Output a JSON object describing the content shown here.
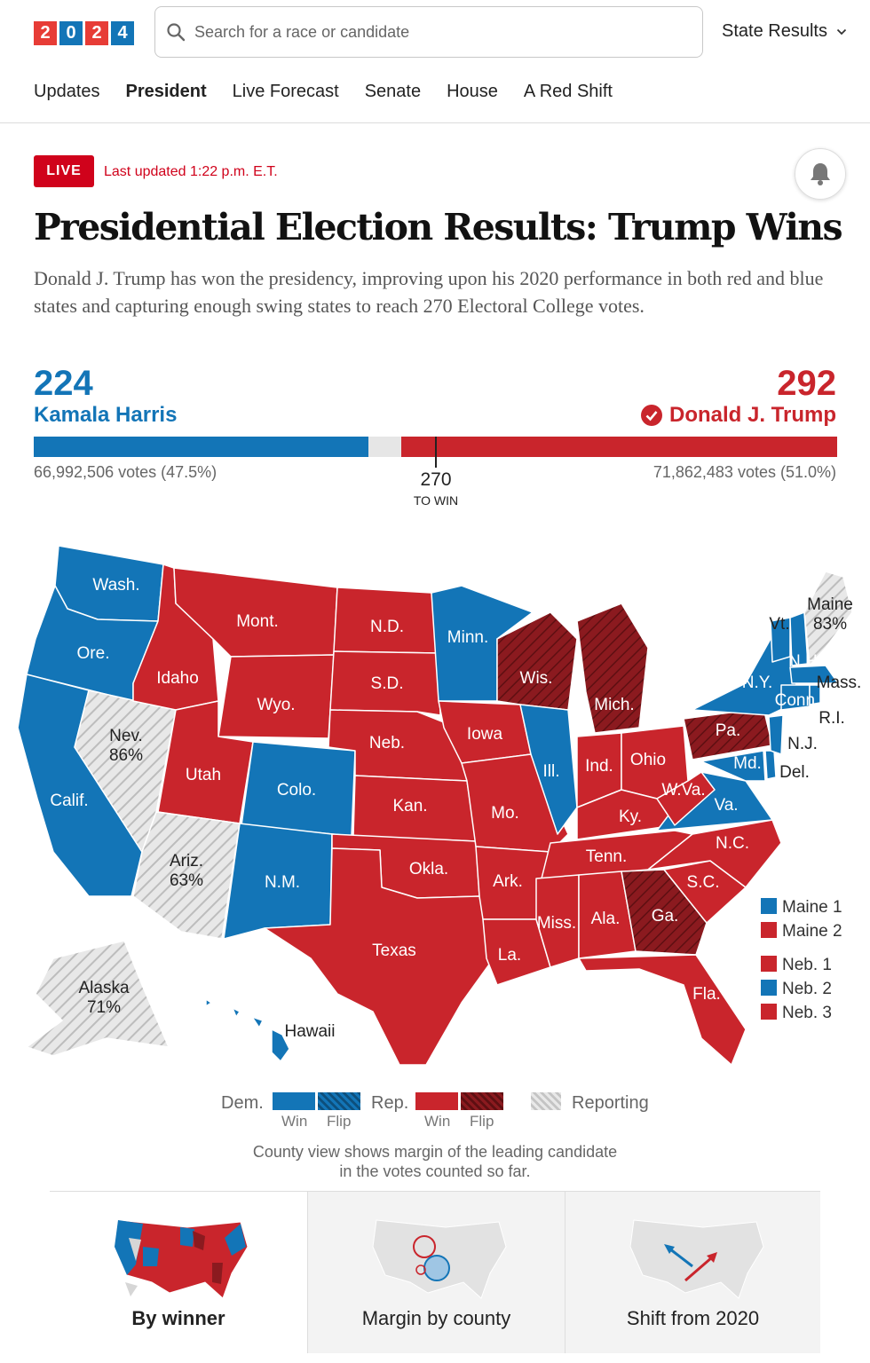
{
  "logo": {
    "digits": [
      "2",
      "0",
      "2",
      "4"
    ],
    "colors": [
      "#e73c36",
      "#1375b7",
      "#e73c36",
      "#1375b7"
    ]
  },
  "search": {
    "placeholder": "Search for a race or candidate",
    "icon": "search-icon"
  },
  "header": {
    "state_results": "State Results"
  },
  "nav": {
    "items": [
      "Updates",
      "President",
      "Live Forecast",
      "Senate",
      "House",
      "A Red Shift"
    ],
    "active": "President"
  },
  "status": {
    "live": "LIVE",
    "updated": "Last updated 1:22 p.m. E.T."
  },
  "headline": "Presidential Election Results: Trump Wins",
  "dek": "Donald J. Trump has won the presidency, improving upon his 2020 performance in both red and blue states and capturing enough swing states to reach 270 Electoral College votes.",
  "harris": {
    "electoral_votes": "224",
    "name": "Kamala Harris",
    "votes": "66,992,506 votes (47.5%)",
    "color": "#1375b7"
  },
  "trump": {
    "electoral_votes": "292",
    "name": "Donald J. Trump",
    "votes": "71,862,483 votes (51.0%)",
    "color": "#c9252c",
    "winner": true
  },
  "threshold": {
    "value": "270",
    "label": "TO WIN",
    "total_ev": 538
  },
  "map": {
    "states": {
      "wash": "Wash.",
      "ore": "Ore.",
      "calif": "Calif.",
      "nev": "Nev.",
      "nev_pct": "86%",
      "idaho": "Idaho",
      "mont": "Mont.",
      "wyo": "Wyo.",
      "utah": "Utah",
      "ariz": "Ariz.",
      "ariz_pct": "63%",
      "colo": "Colo.",
      "nm": "N.M.",
      "nd": "N.D.",
      "sd": "S.D.",
      "neb": "Neb.",
      "kan": "Kan.",
      "okla": "Okla.",
      "texas": "Texas",
      "minn": "Minn.",
      "iowa": "Iowa",
      "mo": "Mo.",
      "ark": "Ark.",
      "la": "La.",
      "wis": "Wis.",
      "ill": "Ill.",
      "mich": "Mich.",
      "ind": "Ind.",
      "ohio": "Ohio",
      "ky": "Ky.",
      "tenn": "Tenn.",
      "miss": "Miss.",
      "ala": "Ala.",
      "ga": "Ga.",
      "fla": "Fla.",
      "sc": "S.C.",
      "nc": "N.C.",
      "va": "Va.",
      "wva": "W.Va.",
      "pa": "Pa.",
      "md": "Md.",
      "del": "Del.",
      "nj": "N.J.",
      "ny": "N.Y.",
      "vt": "Vt.",
      "nh": "N.H.",
      "maine": "Maine",
      "maine_pct": "83%",
      "mass": "Mass.",
      "conn": "Conn.",
      "ri": "R.I.",
      "alaska": "Alaska",
      "alaska_pct": "71%",
      "hawaii": "Hawaii"
    },
    "district_legend": [
      {
        "label": "Maine 1",
        "color": "#1375b7"
      },
      {
        "label": "Maine 2",
        "color": "#c9252c"
      },
      {
        "label": "Neb. 1",
        "color": "#c9252c"
      },
      {
        "label": "Neb. 2",
        "color": "#1375b7"
      },
      {
        "label": "Neb. 3",
        "color": "#c9252c"
      }
    ]
  },
  "legend": {
    "dem": "Dem.",
    "rep": "Rep.",
    "win": "Win",
    "flip": "Flip",
    "reporting": "Reporting",
    "dem_color": "#1375b7",
    "rep_color": "#c9252c",
    "dem_flip_color": "#0d4f7c",
    "rep_flip_color": "#7a1115"
  },
  "note": "County view shows margin of the leading candidate in the votes counted so far.",
  "views": [
    {
      "label": "By winner",
      "active": true
    },
    {
      "label": "Margin by county",
      "active": false
    },
    {
      "label": "Shift from 2020",
      "active": false
    }
  ]
}
